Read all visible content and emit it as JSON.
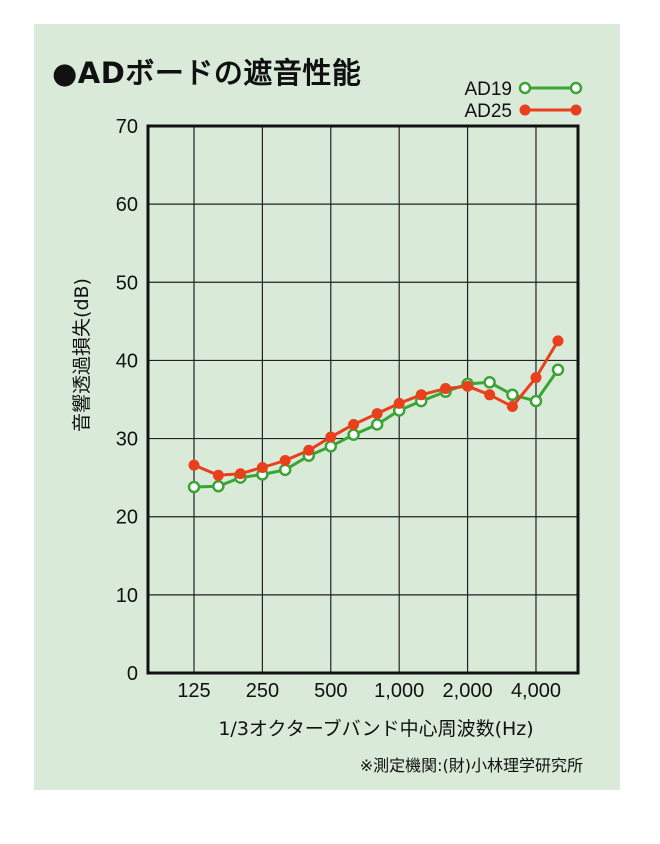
{
  "chart_data": {
    "type": "line",
    "title": "●ADボードの遮音性能",
    "xlabel": "1/3オクターブバンド中心周波数(Hz)",
    "ylabel": "音響透過損失(dB)",
    "note": "※測定機関:(財)小林理学研究所",
    "x_scale": "log",
    "x_tick_labels": [
      "125",
      "250",
      "500",
      "1,000",
      "2,000",
      "4,000"
    ],
    "x_tick_values": [
      125,
      250,
      500,
      1000,
      2000,
      4000
    ],
    "ylim": [
      0,
      70
    ],
    "y_ticks": [
      0,
      10,
      20,
      30,
      40,
      50,
      60,
      70
    ],
    "grid": true,
    "legend_position": "top-right",
    "x": [
      125,
      160,
      200,
      250,
      315,
      400,
      500,
      630,
      800,
      1000,
      1250,
      1600,
      2000,
      2500,
      3150,
      4000,
      5000
    ],
    "series": [
      {
        "name": "AD19",
        "color": "#3aa535",
        "marker": "open-circle",
        "values": [
          23.8,
          23.9,
          25.0,
          25.4,
          26.0,
          27.8,
          29.0,
          30.5,
          31.8,
          33.6,
          34.8,
          36.0,
          37.0,
          37.2,
          35.6,
          34.8,
          38.8
        ]
      },
      {
        "name": "AD25",
        "color": "#e8401c",
        "marker": "filled-circle",
        "values": [
          26.6,
          25.3,
          25.5,
          26.3,
          27.2,
          28.5,
          30.2,
          31.8,
          33.2,
          34.5,
          35.6,
          36.4,
          36.7,
          35.6,
          34.1,
          37.8,
          42.5
        ]
      }
    ]
  }
}
